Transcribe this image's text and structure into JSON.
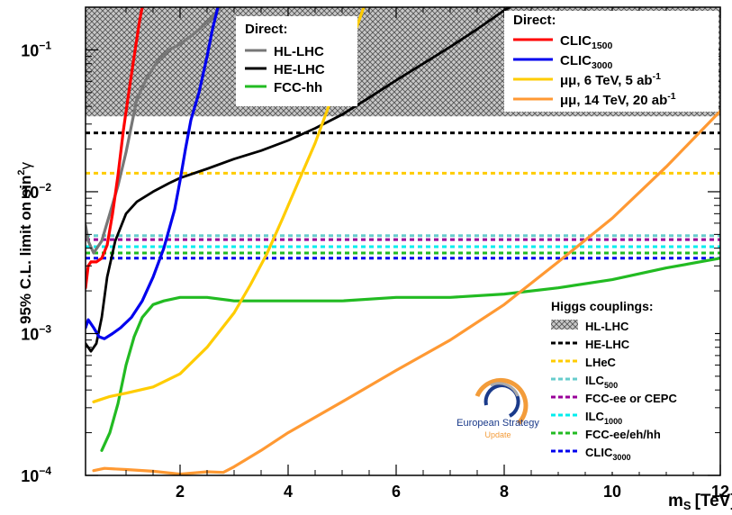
{
  "chart_data": {
    "type": "line",
    "xlabel": "m",
    "xlabel_sub": "S",
    "xlabel_unit": "[TeV]",
    "ylabel": "95% C.L. limit on sin",
    "ylabel_sup": "2",
    "ylabel_sym": "γ",
    "xlim": [
      0.25,
      12
    ],
    "ylim": [
      0.0001,
      0.2
    ],
    "log_y": true,
    "x_ticks": [
      2,
      4,
      6,
      8,
      10,
      12
    ],
    "x_tick_labels": [
      "2",
      "4",
      "6",
      "8",
      "10",
      "12"
    ],
    "y_ticks": [
      0.0001,
      0.001,
      0.01,
      0.1
    ],
    "y_tick_labels": [
      {
        "base": "10",
        "exp": "−4"
      },
      {
        "base": "10",
        "exp": "−3"
      },
      {
        "base": "10",
        "exp": "−2"
      },
      {
        "base": "10",
        "exp": "−1"
      }
    ],
    "legend_direct_1": {
      "title": "Direct:",
      "entries": [
        {
          "label": "HL-LHC",
          "sub": "",
          "color": "#777777"
        },
        {
          "label": "HE-LHC",
          "sub": "",
          "color": "#000000"
        },
        {
          "label": "FCC-hh",
          "sub": "",
          "color": "#22bb22"
        }
      ]
    },
    "legend_direct_2": {
      "title": "Direct:",
      "entries": [
        {
          "label": "CLIC",
          "sub": "1500",
          "color": "#ff0000"
        },
        {
          "label": "CLIC",
          "sub": "3000",
          "color": "#0000ee"
        },
        {
          "label": "μμ, 6 TeV, 5 ab",
          "sup": "-1",
          "color": "#ffcc00"
        },
        {
          "label": "μμ, 14 TeV, 20 ab",
          "sup": "-1",
          "color": "#ff9933"
        }
      ]
    },
    "legend_higgs": {
      "title": "Higgs couplings:",
      "entries": [
        {
          "label": "HL-LHC",
          "sub": "",
          "color": "#999999",
          "style": "hatch"
        },
        {
          "label": "HE-LHC",
          "sub": "",
          "color": "#000000",
          "style": "dash"
        },
        {
          "label": "LHeC",
          "sub": "",
          "color": "#ffcc00",
          "style": "dash"
        },
        {
          "label": "ILC",
          "sub": "500",
          "color": "#66cccc",
          "style": "dash"
        },
        {
          "label": "FCC-ee or CEPC",
          "sub": "",
          "color": "#990099",
          "style": "dash"
        },
        {
          "label": "ILC",
          "sub": "1000",
          "color": "#00eeee",
          "style": "dash"
        },
        {
          "label": "FCC-ee/eh/hh",
          "sub": "",
          "color": "#22bb22",
          "style": "dash"
        },
        {
          "label": "CLIC",
          "sub": "3000",
          "color": "#0000ee",
          "style": "dash"
        }
      ]
    },
    "higgs_band": {
      "name": "HL-LHC",
      "y_min": 0.034,
      "y_max": 0.2,
      "color": "#999999"
    },
    "higgs_lines": [
      {
        "name": "HE-LHC",
        "y": 0.026,
        "color": "#000000"
      },
      {
        "name": "LHeC",
        "y": 0.0135,
        "color": "#ffcc00"
      },
      {
        "name": "ILC500",
        "y": 0.0049,
        "color": "#66cccc"
      },
      {
        "name": "FCC-ee or CEPC",
        "y": 0.0046,
        "color": "#990099"
      },
      {
        "name": "ILC1000",
        "y": 0.0041,
        "color": "#00eeee"
      },
      {
        "name": "FCC-ee/eh/hh",
        "y": 0.0037,
        "color": "#22bb22"
      },
      {
        "name": "CLIC3000",
        "y": 0.0034,
        "color": "#0000ee"
      }
    ],
    "series": [
      {
        "name": "HL-LHC",
        "color": "#777777",
        "width": 3.2,
        "x": [
          0.25,
          0.3,
          0.4,
          0.55,
          0.7,
          0.85,
          1.0,
          1.2,
          1.4,
          1.6,
          1.8,
          2.0,
          2.2,
          2.4,
          2.6,
          2.75
        ],
        "y": [
          0.0058,
          0.0045,
          0.0037,
          0.0045,
          0.007,
          0.011,
          0.019,
          0.045,
          0.065,
          0.085,
          0.1,
          0.11,
          0.125,
          0.145,
          0.17,
          0.2
        ]
      },
      {
        "name": "HE-LHC",
        "color": "#000000",
        "width": 2.8,
        "x": [
          0.25,
          0.35,
          0.45,
          0.55,
          0.65,
          0.8,
          1.0,
          1.2,
          1.5,
          1.8,
          2.0,
          2.5,
          3.0,
          3.5,
          4.0,
          4.5,
          5.0,
          5.5,
          6.0,
          6.5,
          7.0,
          7.5,
          8.0,
          8.1
        ],
        "y": [
          0.00085,
          0.00075,
          0.00085,
          0.0013,
          0.0025,
          0.0045,
          0.007,
          0.0085,
          0.01,
          0.0115,
          0.0125,
          0.0145,
          0.017,
          0.0195,
          0.023,
          0.028,
          0.035,
          0.046,
          0.061,
          0.08,
          0.105,
          0.14,
          0.19,
          0.2
        ]
      },
      {
        "name": "FCC-hh",
        "color": "#22bb22",
        "width": 3.2,
        "x": [
          0.55,
          0.7,
          0.85,
          1.0,
          1.15,
          1.3,
          1.5,
          1.7,
          2.0,
          2.5,
          3.0,
          4.0,
          5.0,
          6.0,
          7.0,
          8.0,
          9.0,
          10.0,
          11.0,
          12.0
        ],
        "y": [
          0.00015,
          0.0002,
          0.00032,
          0.0006,
          0.00095,
          0.0013,
          0.0016,
          0.0017,
          0.0018,
          0.0018,
          0.0017,
          0.0017,
          0.0017,
          0.0018,
          0.0018,
          0.0019,
          0.0021,
          0.0024,
          0.0029,
          0.0034
        ]
      },
      {
        "name": "CLIC1500",
        "color": "#ff0000",
        "width": 3.2,
        "x": [
          0.25,
          0.3,
          0.35,
          0.45,
          0.55,
          0.65,
          0.75,
          0.85,
          0.95,
          1.05,
          1.15,
          1.25,
          1.3
        ],
        "y": [
          0.0021,
          0.003,
          0.0032,
          0.0032,
          0.0034,
          0.0042,
          0.007,
          0.013,
          0.027,
          0.05,
          0.09,
          0.16,
          0.2
        ]
      },
      {
        "name": "CLIC3000",
        "color": "#0000ee",
        "width": 3.2,
        "x": [
          0.25,
          0.3,
          0.4,
          0.5,
          0.6,
          0.75,
          0.9,
          1.1,
          1.3,
          1.5,
          1.7,
          1.9,
          2.0,
          2.1,
          2.2,
          2.35,
          2.5,
          2.6,
          2.7
        ],
        "y": [
          0.0011,
          0.00125,
          0.0011,
          0.00095,
          0.00092,
          0.001,
          0.0011,
          0.0013,
          0.0017,
          0.0025,
          0.004,
          0.0075,
          0.012,
          0.02,
          0.032,
          0.05,
          0.09,
          0.14,
          0.2
        ]
      },
      {
        "name": "μμ, 6 TeV, 5 ab-1",
        "color": "#ffcc00",
        "width": 3.2,
        "x": [
          0.4,
          0.5,
          0.7,
          1.0,
          1.5,
          2.0,
          2.5,
          3.0,
          3.3,
          3.6,
          3.9,
          4.2,
          4.5,
          4.8,
          5.1,
          5.4
        ],
        "y": [
          0.00033,
          0.00034,
          0.00036,
          0.00038,
          0.00042,
          0.00052,
          0.0008,
          0.0014,
          0.0022,
          0.0036,
          0.0065,
          0.012,
          0.022,
          0.045,
          0.095,
          0.2
        ]
      },
      {
        "name": "μμ, 14 TeV, 20 ab-1",
        "color": "#ff9933",
        "width": 3.2,
        "x": [
          0.4,
          0.6,
          1.0,
          1.5,
          2.0,
          2.5,
          2.8,
          3.0,
          3.5,
          4.0,
          5.0,
          6.0,
          7.0,
          8.0,
          9.0,
          10.0,
          11.0,
          12.0
        ],
        "y": [
          0.000108,
          0.000112,
          0.00011,
          0.000107,
          0.000102,
          0.000106,
          0.000105,
          0.000115,
          0.00015,
          0.0002,
          0.00033,
          0.00055,
          0.0009,
          0.0016,
          0.0032,
          0.0065,
          0.015,
          0.037
        ]
      }
    ],
    "logo": {
      "line1": "European Strategy",
      "line2": "Update"
    }
  }
}
